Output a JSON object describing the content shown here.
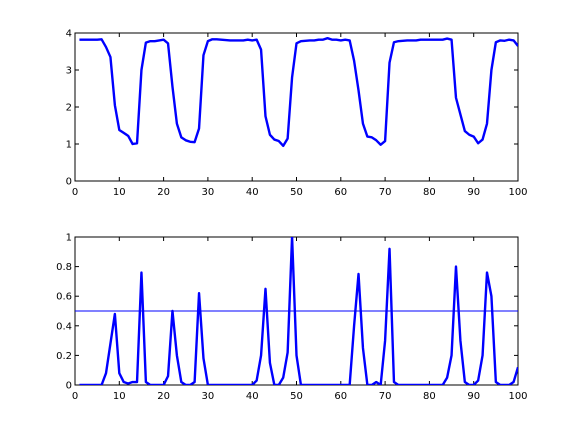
{
  "chart_data": [
    {
      "type": "line",
      "title": "",
      "xlabel": "",
      "ylabel": "",
      "xlim": [
        0,
        100
      ],
      "ylim": [
        0,
        4
      ],
      "xticks": [
        0,
        10,
        20,
        30,
        40,
        50,
        60,
        70,
        80,
        90,
        100
      ],
      "yticks": [
        0,
        1,
        2,
        3,
        4
      ],
      "grid": false,
      "series": [
        {
          "color": "#0000ff",
          "width": "thick",
          "x": [
            1,
            2,
            3,
            4,
            5,
            6,
            7,
            8,
            9,
            10,
            11,
            12,
            13,
            14,
            15,
            16,
            17,
            18,
            19,
            20,
            21,
            22,
            23,
            24,
            25,
            26,
            27,
            28,
            29,
            30,
            31,
            32,
            33,
            34,
            35,
            36,
            37,
            38,
            39,
            40,
            41,
            42,
            43,
            44,
            45,
            46,
            47,
            48,
            49,
            50,
            51,
            52,
            53,
            54,
            55,
            56,
            57,
            58,
            59,
            60,
            61,
            62,
            63,
            64,
            65,
            66,
            67,
            68,
            69,
            70,
            71,
            72,
            73,
            74,
            75,
            76,
            77,
            78,
            79,
            80,
            81,
            82,
            83,
            84,
            85,
            86,
            87,
            88,
            89,
            90,
            91,
            92,
            93,
            94,
            95,
            96,
            97,
            98,
            99,
            100
          ],
          "y": [
            3.82,
            3.82,
            3.82,
            3.82,
            3.82,
            3.83,
            3.62,
            3.35,
            2.05,
            1.38,
            1.3,
            1.22,
            1.0,
            1.02,
            3.0,
            3.74,
            3.78,
            3.78,
            3.8,
            3.82,
            3.72,
            2.55,
            1.55,
            1.18,
            1.1,
            1.06,
            1.05,
            1.42,
            3.4,
            3.78,
            3.83,
            3.83,
            3.82,
            3.81,
            3.8,
            3.8,
            3.8,
            3.8,
            3.82,
            3.8,
            3.82,
            3.55,
            1.75,
            1.25,
            1.12,
            1.08,
            0.95,
            1.15,
            2.8,
            3.72,
            3.78,
            3.79,
            3.8,
            3.8,
            3.82,
            3.82,
            3.86,
            3.82,
            3.82,
            3.8,
            3.82,
            3.8,
            3.25,
            2.45,
            1.55,
            1.2,
            1.18,
            1.1,
            0.98,
            1.08,
            3.2,
            3.75,
            3.78,
            3.79,
            3.8,
            3.8,
            3.8,
            3.82,
            3.82,
            3.82,
            3.82,
            3.82,
            3.82,
            3.85,
            3.82,
            2.25,
            1.8,
            1.35,
            1.25,
            1.2,
            1.02,
            1.12,
            1.55,
            3.0,
            3.75,
            3.8,
            3.79,
            3.82,
            3.8,
            3.65
          ]
        }
      ]
    },
    {
      "type": "line",
      "title": "",
      "xlabel": "",
      "ylabel": "",
      "xlim": [
        0,
        100
      ],
      "ylim": [
        0,
        1
      ],
      "xticks": [
        0,
        10,
        20,
        30,
        40,
        50,
        60,
        70,
        80,
        90,
        100
      ],
      "yticks": [
        0,
        0.2,
        0.4,
        0.6,
        0.8,
        1
      ],
      "grid": false,
      "series": [
        {
          "color": "#0000ff",
          "width": "thick",
          "x": [
            1,
            2,
            3,
            4,
            5,
            6,
            7,
            8,
            9,
            10,
            11,
            12,
            13,
            14,
            15,
            16,
            17,
            18,
            19,
            20,
            21,
            22,
            23,
            24,
            25,
            26,
            27,
            28,
            29,
            30,
            31,
            32,
            33,
            34,
            35,
            36,
            37,
            38,
            39,
            40,
            41,
            42,
            43,
            44,
            45,
            46,
            47,
            48,
            49,
            50,
            51,
            52,
            53,
            54,
            55,
            56,
            57,
            58,
            59,
            60,
            61,
            62,
            63,
            64,
            65,
            66,
            67,
            68,
            69,
            70,
            71,
            72,
            73,
            74,
            75,
            76,
            77,
            78,
            79,
            80,
            81,
            82,
            83,
            84,
            85,
            86,
            87,
            88,
            89,
            90,
            91,
            92,
            93,
            94,
            95,
            96,
            97,
            98,
            99,
            100
          ],
          "y": [
            0.0,
            0.0,
            0.0,
            0.0,
            0.0,
            0.0,
            0.08,
            0.28,
            0.48,
            0.08,
            0.02,
            0.01,
            0.02,
            0.02,
            0.76,
            0.02,
            0.0,
            0.0,
            0.0,
            0.0,
            0.06,
            0.5,
            0.2,
            0.02,
            0.0,
            0.0,
            0.02,
            0.62,
            0.18,
            0.0,
            0.0,
            0.0,
            0.0,
            0.0,
            0.0,
            0.0,
            0.0,
            0.0,
            0.0,
            0.0,
            0.03,
            0.2,
            0.65,
            0.15,
            0.0,
            0.0,
            0.05,
            0.22,
            1.0,
            0.2,
            0.0,
            0.0,
            0.0,
            0.0,
            0.0,
            0.0,
            0.0,
            0.0,
            0.0,
            0.0,
            0.0,
            0.0,
            0.4,
            0.75,
            0.25,
            0.0,
            0.0,
            0.02,
            0.0,
            0.3,
            0.92,
            0.02,
            0.0,
            0.0,
            0.0,
            0.0,
            0.0,
            0.0,
            0.0,
            0.0,
            0.0,
            0.0,
            0.0,
            0.05,
            0.2,
            0.8,
            0.3,
            0.02,
            0.0,
            0.0,
            0.03,
            0.2,
            0.76,
            0.6,
            0.02,
            0.0,
            0.0,
            0.0,
            0.02,
            0.12
          ]
        },
        {
          "color": "#0000ff",
          "width": "thin",
          "x": [
            0,
            100
          ],
          "y": [
            0.5,
            0.5
          ]
        }
      ]
    }
  ]
}
